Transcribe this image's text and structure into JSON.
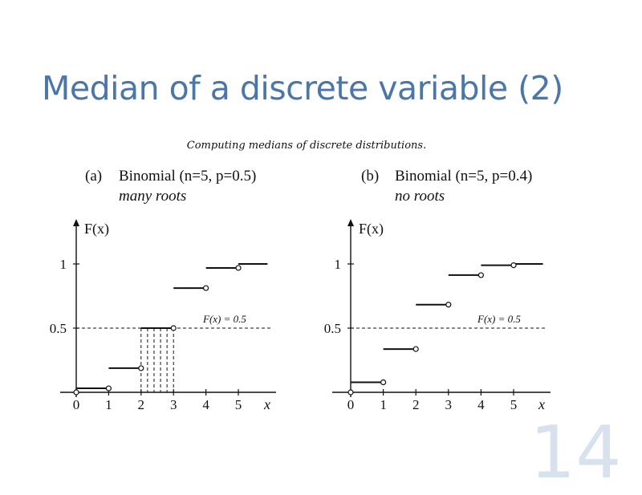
{
  "slide": {
    "title": "Median of a discrete variable (2)",
    "caption": "Computing medians of discrete distributions.",
    "page_number": "14"
  },
  "chart_data": [
    {
      "type": "line",
      "panel": "(a)",
      "title": "Binomial (n=5, p=0.5)",
      "subtitle": "many roots",
      "ylabel": "F(x)",
      "xlabel": "x",
      "x_ticks": [
        "0",
        "1",
        "2",
        "3",
        "4",
        "5"
      ],
      "y_ticks": [
        {
          "value": 0.5,
          "label": "0.5"
        },
        {
          "value": 1,
          "label": "1"
        }
      ],
      "xlim": [
        0,
        5.9
      ],
      "ylim": [
        0,
        1
      ],
      "steps": [
        {
          "x0": 0,
          "x1": 1,
          "y": 0.031
        },
        {
          "x0": 1,
          "x1": 2,
          "y": 0.188
        },
        {
          "x0": 2,
          "x1": 3,
          "y": 0.5
        },
        {
          "x0": 3,
          "x1": 4,
          "y": 0.812
        },
        {
          "x0": 4,
          "x1": 5,
          "y": 0.969
        },
        {
          "x0": 5,
          "x1": 5.9,
          "y": 1.0
        }
      ],
      "reference_line": {
        "y": 0.5,
        "label": "F(x) = 0.5"
      },
      "median_roots": [
        2,
        2.2,
        2.4,
        2.6,
        2.8,
        3
      ]
    },
    {
      "type": "line",
      "panel": "(b)",
      "title": "Binomial (n=5, p=0.4)",
      "subtitle": "no roots",
      "ylabel": "F(x)",
      "xlabel": "x",
      "x_ticks": [
        "0",
        "1",
        "2",
        "3",
        "4",
        "5"
      ],
      "y_ticks": [
        {
          "value": 0.5,
          "label": "0.5"
        },
        {
          "value": 1,
          "label": "1"
        }
      ],
      "xlim": [
        0,
        5.9
      ],
      "ylim": [
        0,
        1
      ],
      "steps": [
        {
          "x0": 0,
          "x1": 1,
          "y": 0.078
        },
        {
          "x0": 1,
          "x1": 2,
          "y": 0.337
        },
        {
          "x0": 2,
          "x1": 3,
          "y": 0.683
        },
        {
          "x0": 3,
          "x1": 4,
          "y": 0.913
        },
        {
          "x0": 4,
          "x1": 5,
          "y": 0.99
        },
        {
          "x0": 5,
          "x1": 5.9,
          "y": 1.0
        }
      ],
      "reference_line": {
        "y": 0.5,
        "label": "F(x) = 0.5"
      },
      "median_roots": []
    }
  ]
}
